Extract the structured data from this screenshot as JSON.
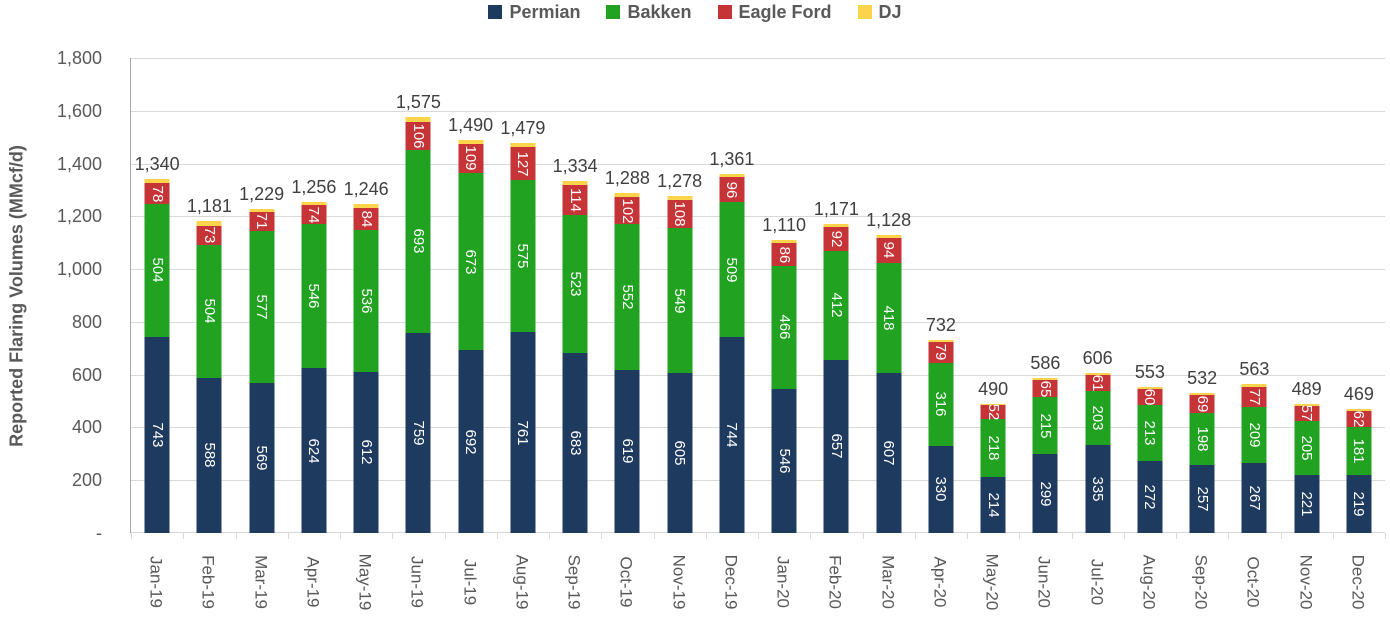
{
  "chart_data": {
    "type": "bar",
    "subtype": "stacked",
    "title": "",
    "xlabel": "",
    "ylabel": "Reported Flaring Volumes (MMcf/d)",
    "ylim": [
      0,
      1800
    ],
    "y_tick_step": 200,
    "y_tick_labels": [
      "-",
      "200",
      "400",
      "600",
      "800",
      "1,000",
      "1,200",
      "1,400",
      "1,600",
      "1,800"
    ],
    "grid": true,
    "legend_position": "top",
    "categories": [
      "Jan-19",
      "Feb-19",
      "Mar-19",
      "Apr-19",
      "May-19",
      "Jun-19",
      "Jul-19",
      "Aug-19",
      "Sep-19",
      "Oct-19",
      "Nov-19",
      "Dec-19",
      "Jan-20",
      "Feb-20",
      "Mar-20",
      "Apr-20",
      "May-20",
      "Jun-20",
      "Jul-20",
      "Aug-20",
      "Sep-20",
      "Oct-20",
      "Nov-20",
      "Dec-20"
    ],
    "series": [
      {
        "name": "Permian",
        "color": "#1F3A5F",
        "show_labels": true,
        "values": [
          743,
          588,
          569,
          624,
          612,
          759,
          692,
          761,
          683,
          619,
          605,
          744,
          546,
          657,
          607,
          330,
          214,
          299,
          335,
          272,
          257,
          267,
          221,
          219
        ]
      },
      {
        "name": "Bakken",
        "color": "#21A221",
        "show_labels": true,
        "values": [
          504,
          504,
          577,
          546,
          536,
          693,
          673,
          575,
          523,
          552,
          549,
          509,
          466,
          412,
          418,
          316,
          218,
          215,
          203,
          213,
          198,
          209,
          205,
          181
        ]
      },
      {
        "name": "Eagle Ford",
        "color": "#C63438",
        "show_labels": true,
        "values": [
          78,
          73,
          71,
          74,
          84,
          106,
          109,
          127,
          114,
          102,
          108,
          96,
          86,
          92,
          94,
          79,
          52,
          65,
          61,
          60,
          69,
          77,
          57,
          62
        ]
      },
      {
        "name": "DJ",
        "color": "#FBD44C",
        "show_labels": false,
        "values": [
          15,
          16,
          12,
          12,
          14,
          17,
          16,
          16,
          14,
          15,
          16,
          12,
          12,
          10,
          9,
          7,
          6,
          7,
          7,
          8,
          8,
          10,
          6,
          7
        ]
      }
    ],
    "totals": [
      1340,
      1181,
      1229,
      1256,
      1246,
      1575,
      1490,
      1479,
      1334,
      1288,
      1278,
      1361,
      1110,
      1171,
      1128,
      732,
      490,
      586,
      606,
      553,
      532,
      563,
      489,
      469
    ],
    "total_labels": [
      "1,340",
      "1,181",
      "1,229",
      "1,256",
      "1,246",
      "1,575",
      "1,490",
      "1,479",
      "1,334",
      "1,288",
      "1,278",
      "1,361",
      "1,110",
      "1,171",
      "1,128",
      "732",
      "490",
      "586",
      "606",
      "553",
      "532",
      "563",
      "489",
      "469"
    ],
    "colors": {
      "gridline": "#d9d9d9",
      "axis_line": "#a6a6a6",
      "tick_label": "#595959",
      "total_label": "#404040",
      "bar_value_label": "#ffffff"
    }
  }
}
